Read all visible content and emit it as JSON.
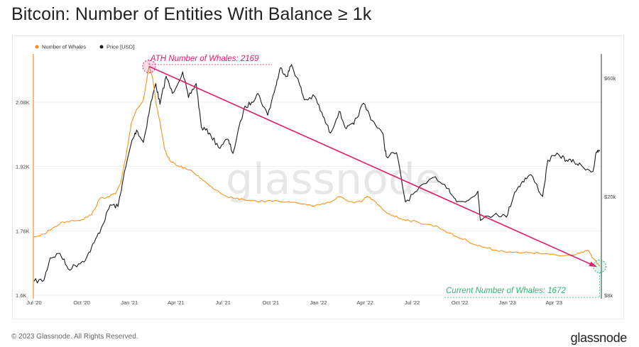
{
  "title": "Bitcoin: Number of Entities With Balance ≥ 1k",
  "footer": {
    "copyright": "© 2023 Glassnode. All Rights Reserved.",
    "brand": "glassnode"
  },
  "watermark": "glassnode",
  "colors": {
    "whales": "#f7931a",
    "price": "#1a1a1a",
    "trend": "#e5196b",
    "current": "#2bb673",
    "grid": "#eeeeee"
  },
  "chart_data": {
    "type": "line",
    "title": "Bitcoin: Number of Entities With Balance ≥ 1k",
    "x_tick_labels": [
      "Jul '20",
      "Oct '20",
      "Jan '21",
      "Apr '21",
      "Jul '21",
      "Oct '21",
      "Jan '22",
      "Apr '22",
      "Jul '22",
      "Oct '22",
      "Jan '23",
      "Apr '23"
    ],
    "left_axis": {
      "ticks": [
        "1.6K",
        "1.76K",
        "1.92K",
        "2.08K"
      ],
      "values": [
        1600,
        1760,
        1920,
        2080
      ],
      "range": [
        1600,
        2200
      ]
    },
    "right_axis": {
      "ticks": [
        "$8k",
        "$20k",
        "$60k"
      ],
      "values": [
        8000,
        20000,
        60000
      ],
      "scale": "log",
      "range": [
        8000,
        75000
      ]
    },
    "x_range": [
      "2020-07-01",
      "2023-06-30"
    ],
    "grid": true,
    "legend_position": "top-left",
    "series": [
      {
        "name": "Number of Whales",
        "axis": "left",
        "points": [
          [
            "2020-07-01",
            1745
          ],
          [
            "2020-07-20",
            1752
          ],
          [
            "2020-08-10",
            1770
          ],
          [
            "2020-08-25",
            1782
          ],
          [
            "2020-09-15",
            1786
          ],
          [
            "2020-10-01",
            1788
          ],
          [
            "2020-10-20",
            1800
          ],
          [
            "2020-11-05",
            1840
          ],
          [
            "2020-11-20",
            1845
          ],
          [
            "2020-12-05",
            1852
          ],
          [
            "2020-12-15",
            1878
          ],
          [
            "2020-12-25",
            1942
          ],
          [
            "2021-01-05",
            2030
          ],
          [
            "2021-01-15",
            2062
          ],
          [
            "2021-01-28",
            2086
          ],
          [
            "2021-02-08",
            2169
          ],
          [
            "2021-02-15",
            2140
          ],
          [
            "2021-02-22",
            2072
          ],
          [
            "2021-03-01",
            2030
          ],
          [
            "2021-03-10",
            1962
          ],
          [
            "2021-03-20",
            1935
          ],
          [
            "2021-04-05",
            1922
          ],
          [
            "2021-04-20",
            1915
          ],
          [
            "2021-05-05",
            1905
          ],
          [
            "2021-05-20",
            1890
          ],
          [
            "2021-06-05",
            1872
          ],
          [
            "2021-06-20",
            1860
          ],
          [
            "2021-07-05",
            1848
          ],
          [
            "2021-07-20",
            1842
          ],
          [
            "2021-08-10",
            1838
          ],
          [
            "2021-09-01",
            1835
          ],
          [
            "2021-09-20",
            1832
          ],
          [
            "2021-10-10",
            1836
          ],
          [
            "2021-11-01",
            1832
          ],
          [
            "2021-11-20",
            1830
          ],
          [
            "2021-12-10",
            1825
          ],
          [
            "2021-12-25",
            1822
          ],
          [
            "2022-01-10",
            1828
          ],
          [
            "2022-01-25",
            1832
          ],
          [
            "2022-02-10",
            1845
          ],
          [
            "2022-02-25",
            1836
          ],
          [
            "2022-03-10",
            1830
          ],
          [
            "2022-03-25",
            1832
          ],
          [
            "2022-04-05",
            1846
          ],
          [
            "2022-04-15",
            1838
          ],
          [
            "2022-04-25",
            1826
          ],
          [
            "2022-05-10",
            1808
          ],
          [
            "2022-05-25",
            1798
          ],
          [
            "2022-06-10",
            1790
          ],
          [
            "2022-06-25",
            1786
          ],
          [
            "2022-07-15",
            1780
          ],
          [
            "2022-08-01",
            1776
          ],
          [
            "2022-08-20",
            1770
          ],
          [
            "2022-09-10",
            1755
          ],
          [
            "2022-09-25",
            1745
          ],
          [
            "2022-10-15",
            1736
          ],
          [
            "2022-11-01",
            1725
          ],
          [
            "2022-11-20",
            1718
          ],
          [
            "2022-12-10",
            1712
          ],
          [
            "2023-01-05",
            1708
          ],
          [
            "2023-01-25",
            1705
          ],
          [
            "2023-02-15",
            1706
          ],
          [
            "2023-03-05",
            1704
          ],
          [
            "2023-03-25",
            1701
          ],
          [
            "2023-04-15",
            1698
          ],
          [
            "2023-05-05",
            1700
          ],
          [
            "2023-05-25",
            1708
          ],
          [
            "2023-06-05",
            1712
          ],
          [
            "2023-06-15",
            1692
          ],
          [
            "2023-06-28",
            1672
          ]
        ]
      },
      {
        "name": "Price [USD]",
        "axis": "right",
        "points": [
          [
            "2020-07-01",
            9100
          ],
          [
            "2020-07-20",
            9200
          ],
          [
            "2020-08-01",
            11300
          ],
          [
            "2020-08-20",
            11800
          ],
          [
            "2020-09-05",
            10200
          ],
          [
            "2020-09-25",
            10700
          ],
          [
            "2020-10-10",
            11300
          ],
          [
            "2020-10-25",
            13000
          ],
          [
            "2020-11-10",
            15300
          ],
          [
            "2020-11-25",
            18500
          ],
          [
            "2020-12-10",
            18200
          ],
          [
            "2020-12-20",
            23500
          ],
          [
            "2021-01-05",
            33000
          ],
          [
            "2021-01-15",
            37000
          ],
          [
            "2021-01-28",
            33000
          ],
          [
            "2021-02-10",
            46000
          ],
          [
            "2021-02-21",
            57000
          ],
          [
            "2021-03-01",
            47000
          ],
          [
            "2021-03-13",
            61000
          ],
          [
            "2021-03-25",
            52000
          ],
          [
            "2021-04-14",
            63500
          ],
          [
            "2021-04-25",
            50000
          ],
          [
            "2021-05-10",
            57000
          ],
          [
            "2021-05-20",
            38000
          ],
          [
            "2021-06-05",
            36000
          ],
          [
            "2021-06-22",
            31500
          ],
          [
            "2021-07-10",
            34000
          ],
          [
            "2021-07-20",
            29800
          ],
          [
            "2021-08-10",
            45000
          ],
          [
            "2021-08-25",
            48000
          ],
          [
            "2021-09-06",
            52000
          ],
          [
            "2021-09-25",
            42500
          ],
          [
            "2021-10-10",
            55000
          ],
          [
            "2021-10-20",
            66000
          ],
          [
            "2021-11-01",
            61000
          ],
          [
            "2021-11-10",
            68000
          ],
          [
            "2021-11-25",
            57000
          ],
          [
            "2021-12-05",
            49000
          ],
          [
            "2021-12-25",
            50500
          ],
          [
            "2022-01-10",
            42000
          ],
          [
            "2022-01-24",
            36000
          ],
          [
            "2022-02-10",
            44000
          ],
          [
            "2022-02-24",
            37500
          ],
          [
            "2022-03-10",
            39000
          ],
          [
            "2022-03-29",
            47500
          ],
          [
            "2022-04-15",
            40500
          ],
          [
            "2022-05-05",
            36000
          ],
          [
            "2022-05-12",
            29000
          ],
          [
            "2022-06-01",
            30000
          ],
          [
            "2022-06-18",
            19000
          ],
          [
            "2022-07-10",
            21000
          ],
          [
            "2022-08-15",
            24000
          ],
          [
            "2022-09-10",
            21500
          ],
          [
            "2022-09-25",
            19000
          ],
          [
            "2022-10-15",
            19200
          ],
          [
            "2022-11-05",
            21000
          ],
          [
            "2022-11-10",
            16000
          ],
          [
            "2022-12-10",
            17100
          ],
          [
            "2022-12-30",
            16500
          ],
          [
            "2023-01-15",
            20800
          ],
          [
            "2023-01-30",
            23000
          ],
          [
            "2023-02-15",
            24500
          ],
          [
            "2023-03-10",
            20000
          ],
          [
            "2023-03-20",
            28000
          ],
          [
            "2023-04-10",
            29500
          ],
          [
            "2023-04-25",
            28000
          ],
          [
            "2023-05-10",
            27500
          ],
          [
            "2023-05-25",
            26500
          ],
          [
            "2023-06-15",
            25200
          ],
          [
            "2023-06-22",
            30200
          ],
          [
            "2023-06-28",
            30400
          ]
        ]
      }
    ],
    "annotations": [
      {
        "text": "ATH Number of Whales: 2169",
        "date": "2021-02-08",
        "value": 2169
      },
      {
        "text": "Current Number of Whales: 1672",
        "date": "2023-06-28",
        "value": 1672
      }
    ],
    "trendline": {
      "from": [
        "2021-02-08",
        2169
      ],
      "to": [
        "2023-06-28",
        1672
      ]
    }
  }
}
